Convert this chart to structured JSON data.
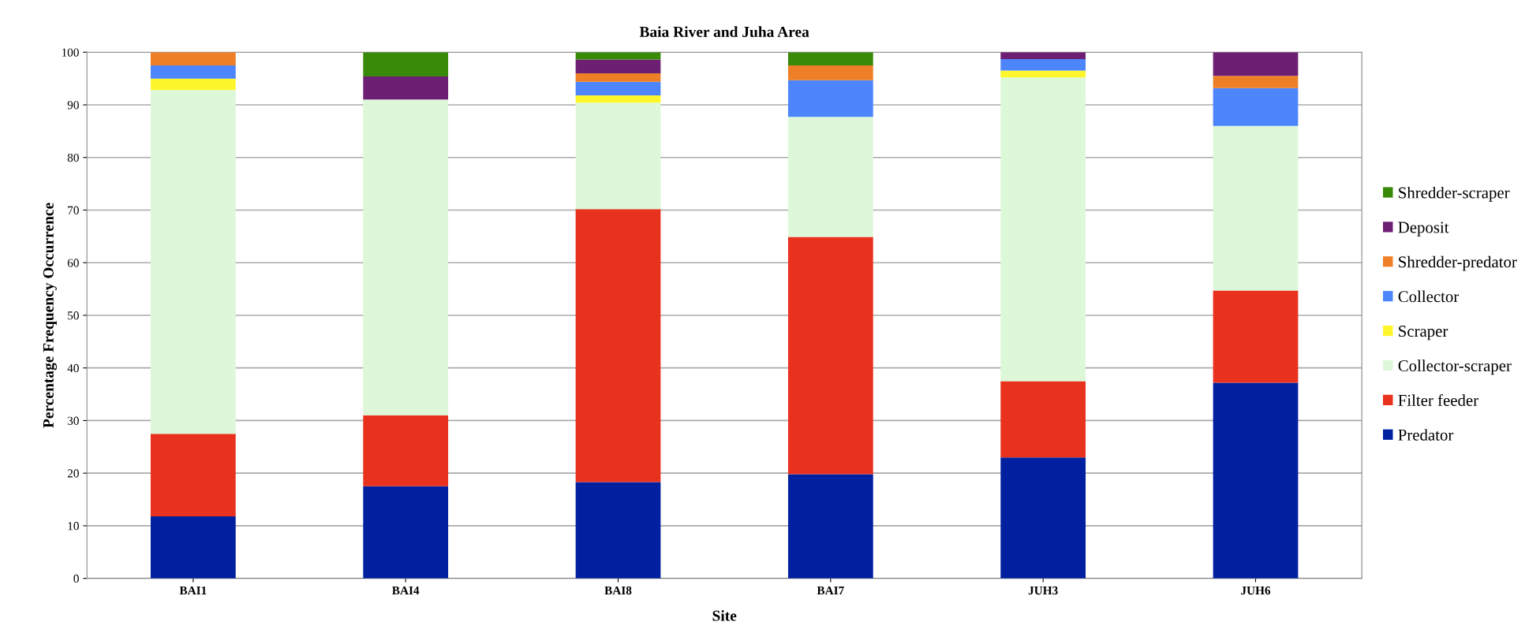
{
  "chart_data": {
    "type": "bar",
    "stacked": true,
    "title": "Baia River and Juha Area",
    "xlabel": "Site",
    "ylabel": "Percentage Frequency Occurrence",
    "categories": [
      "BAI1",
      "BAI4",
      "BAI8",
      "BAI7",
      "JUH3",
      "JUH6"
    ],
    "series": [
      {
        "name": "Predator",
        "color": "#00209f",
        "values": [
          11.8,
          17.5,
          18.3,
          19.8,
          23.0,
          37.2
        ]
      },
      {
        "name": "Filter feeder",
        "color": "#e8321e",
        "values": [
          15.7,
          13.5,
          51.9,
          45.1,
          14.5,
          17.5
        ]
      },
      {
        "name": "Collector-scraper",
        "color": "#ddf8d8",
        "values": [
          65.3,
          60.0,
          20.2,
          22.8,
          57.7,
          31.3
        ]
      },
      {
        "name": "Scraper",
        "color": "#fef62d",
        "values": [
          2.2,
          0,
          1.4,
          0,
          1.3,
          0
        ]
      },
      {
        "name": "Collector",
        "color": "#4d85fd",
        "values": [
          2.5,
          0,
          2.6,
          7.0,
          2.2,
          7.2
        ]
      },
      {
        "name": "Shredder-predator",
        "color": "#ee7f26",
        "values": [
          2.5,
          0,
          1.6,
          2.8,
          0,
          2.3
        ]
      },
      {
        "name": "Deposit",
        "color": "#6d2073",
        "values": [
          0,
          4.4,
          2.6,
          0,
          1.3,
          4.5
        ]
      },
      {
        "name": "Shredder-scraper",
        "color": "#3a8a0a",
        "values": [
          0,
          4.6,
          1.4,
          2.5,
          0,
          0
        ]
      }
    ],
    "ylim": [
      0,
      100
    ],
    "yticks": [
      0,
      10,
      20,
      30,
      40,
      50,
      60,
      70,
      80,
      90,
      100
    ],
    "grid": "y",
    "legend": "right"
  }
}
